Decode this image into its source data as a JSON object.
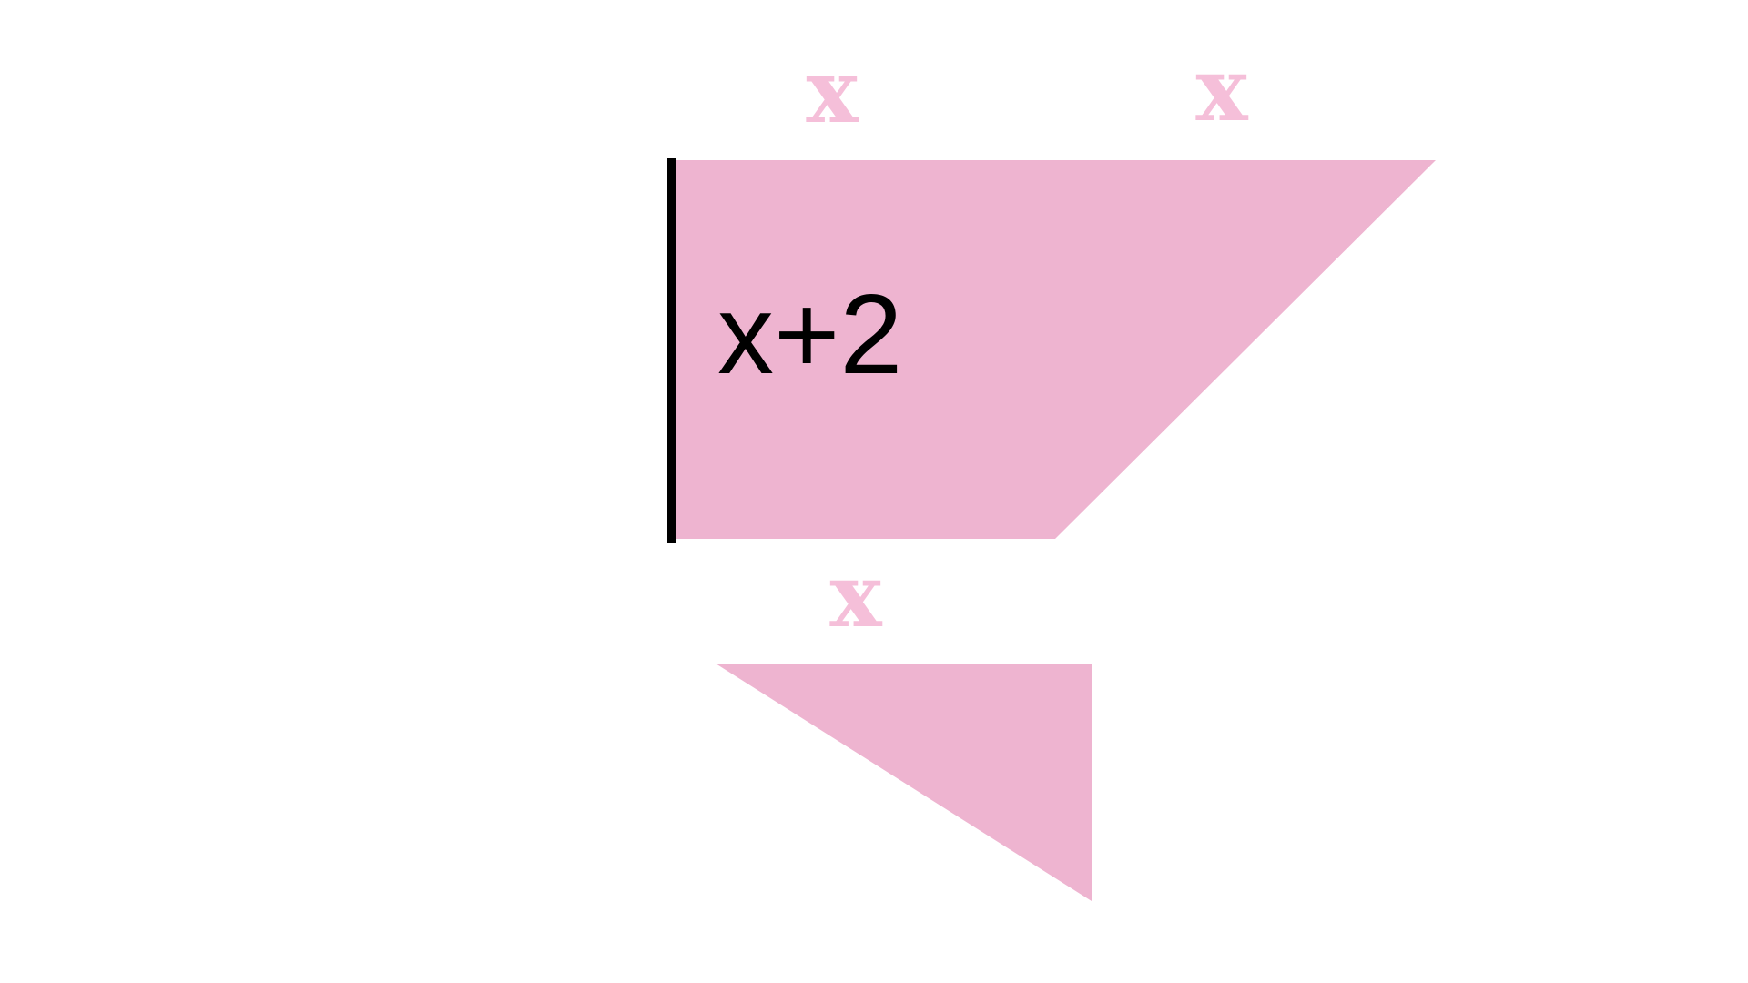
{
  "colors": {
    "background": "#ffffff",
    "shape_fill": "#eeb4d0",
    "faint_label": "#f5bfd9",
    "edge": "#000000",
    "main_label": "#000000"
  },
  "labels": {
    "top_left_x": "x",
    "top_right_x": "x",
    "side_height": "x+2",
    "middle_x": "x"
  },
  "shapes": {
    "trapezoid": "pink-trapezoid",
    "triangle": "pink-triangle"
  }
}
